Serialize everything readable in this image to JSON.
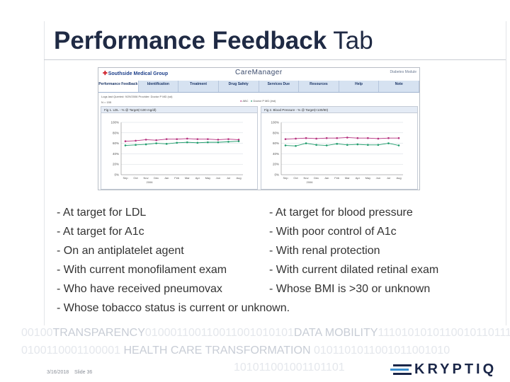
{
  "slide": {
    "title_bold": "Performance Feedback",
    "title_rest": "Tab"
  },
  "screenshot": {
    "brand": "Southside Medical Group",
    "app_name": "CareManager",
    "module": "Diabetes Module",
    "tabs": [
      {
        "label": "Performance Feedback",
        "active": true
      },
      {
        "label": "Identification",
        "active": false
      },
      {
        "label": "Treatment",
        "active": false
      },
      {
        "label": "Drug Safety",
        "active": false
      },
      {
        "label": "Services Due",
        "active": false
      },
      {
        "label": "Resources",
        "active": false
      },
      {
        "label": "Help",
        "active": false
      },
      {
        "label": "Note",
        "active": false
      }
    ],
    "info_line": "Logs last Queried: 9/29/2006   Provider: Doctor P MD (sd)",
    "n_line": "N = 155",
    "legend": {
      "abc": "ABC",
      "doctor": "Doctor P MD (est)"
    },
    "colors": {
      "series_a": "#b5307e",
      "series_b": "#1e9c6b"
    },
    "charts": [
      {
        "caption": "Fig 1. LDL - % @ Target(<100 mg/dl)",
        "chart_data": {
          "type": "line",
          "categories": [
            "Sep",
            "Oct",
            "Nov",
            "Dec",
            "Jan",
            "Feb",
            "Mar",
            "Apr",
            "May",
            "Jun",
            "Jul",
            "Aug"
          ],
          "year_label": "2006",
          "ylim": [
            0,
            100
          ],
          "yticks": [
            "0%",
            "20%",
            "40%",
            "60%",
            "80%",
            "100%"
          ],
          "series": [
            {
              "values": [
                64,
                65,
                67,
                66,
                68,
                68,
                69,
                68,
                68,
                67,
                68,
                67
              ]
            },
            {
              "values": [
                56,
                57,
                58,
                60,
                59,
                61,
                62,
                61,
                62,
                62,
                63,
                64
              ]
            }
          ]
        }
      },
      {
        "caption": "Fig 2. Blood Pressure - % @ Target(<130/80)",
        "chart_data": {
          "type": "line",
          "categories": [
            "Sep",
            "Oct",
            "Nov",
            "Dec",
            "Jan",
            "Feb",
            "Mar",
            "Apr",
            "May",
            "Jun",
            "Jul",
            "Aug"
          ],
          "year_label": "2006",
          "ylim": [
            0,
            100
          ],
          "yticks": [
            "0%",
            "20%",
            "40%",
            "60%",
            "80%",
            "100%"
          ],
          "series": [
            {
              "values": [
                68,
                69,
                70,
                69,
                70,
                70,
                71,
                70,
                70,
                69,
                70,
                70
              ]
            },
            {
              "values": [
                56,
                55,
                60,
                57,
                56,
                59,
                57,
                58,
                57,
                57,
                60,
                56
              ]
            }
          ]
        }
      }
    ]
  },
  "bullets_left": [
    "- At target for LDL",
    "- At target for A1c",
    "- On an antiplatelet agent",
    "- With current monofilament exam",
    "- Who have received pneumovax"
  ],
  "bullets_right": [
    "- At target for blood pressure",
    "- With poor control of A1c",
    "- With renal protection",
    "- With current dilated retinal exam",
    "- Whose BMI is >30 or unknown"
  ],
  "bullet_full": "- Whose tobacco status is current or unknown.",
  "footer": {
    "band1_pre": "00100",
    "band1_hl1": "TRANSPARENCY",
    "band1_mid": "010001100110011001010101",
    "band1_hl2": "DATA MOBILITY",
    "band1_post": "1110101010110010110111",
    "band2_pre": "01001100011",
    "band2_mid": "00001",
    "band2_hl": "HEALTH CARE TRANSFORMATION",
    "band2_post": "0101101011001011001010",
    "band3": "101011001001101101",
    "date": "3/16/2018",
    "slide_number": "Slide 36",
    "logo": "KRYPTIQ"
  }
}
